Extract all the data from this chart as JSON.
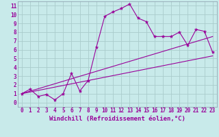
{
  "xlabel": "Windchill (Refroidissement éolien,°C)",
  "ylabel": "",
  "background_color": "#c8eaea",
  "line_color": "#990099",
  "grid_color": "#aacccc",
  "spine_color": "#8899aa",
  "xlim": [
    -0.5,
    23.5
  ],
  "ylim": [
    -0.5,
    11.5
  ],
  "xticks": [
    0,
    1,
    2,
    3,
    4,
    5,
    6,
    7,
    8,
    9,
    10,
    11,
    12,
    13,
    14,
    15,
    16,
    17,
    18,
    19,
    20,
    21,
    22,
    23
  ],
  "yticks": [
    0,
    1,
    2,
    3,
    4,
    5,
    6,
    7,
    8,
    9,
    10,
    11
  ],
  "series1_x": [
    0,
    1,
    2,
    3,
    4,
    5,
    6,
    7,
    8,
    9,
    10,
    11,
    12,
    13,
    14,
    15,
    16,
    17,
    18,
    19,
    20,
    21,
    22,
    23
  ],
  "series1_y": [
    1.0,
    1.5,
    0.7,
    0.9,
    0.3,
    1.0,
    3.3,
    1.3,
    2.5,
    6.3,
    9.8,
    10.3,
    10.7,
    11.2,
    9.6,
    9.2,
    7.5,
    7.5,
    7.5,
    8.0,
    6.5,
    8.3,
    8.1,
    5.7
  ],
  "series2_x": [
    0,
    23
  ],
  "series2_y": [
    1.0,
    5.3
  ],
  "series3_x": [
    0,
    23
  ],
  "series3_y": [
    1.0,
    7.5
  ],
  "tick_fontsize": 5.5,
  "xlabel_fontsize": 6.5,
  "marker_size": 3.5
}
